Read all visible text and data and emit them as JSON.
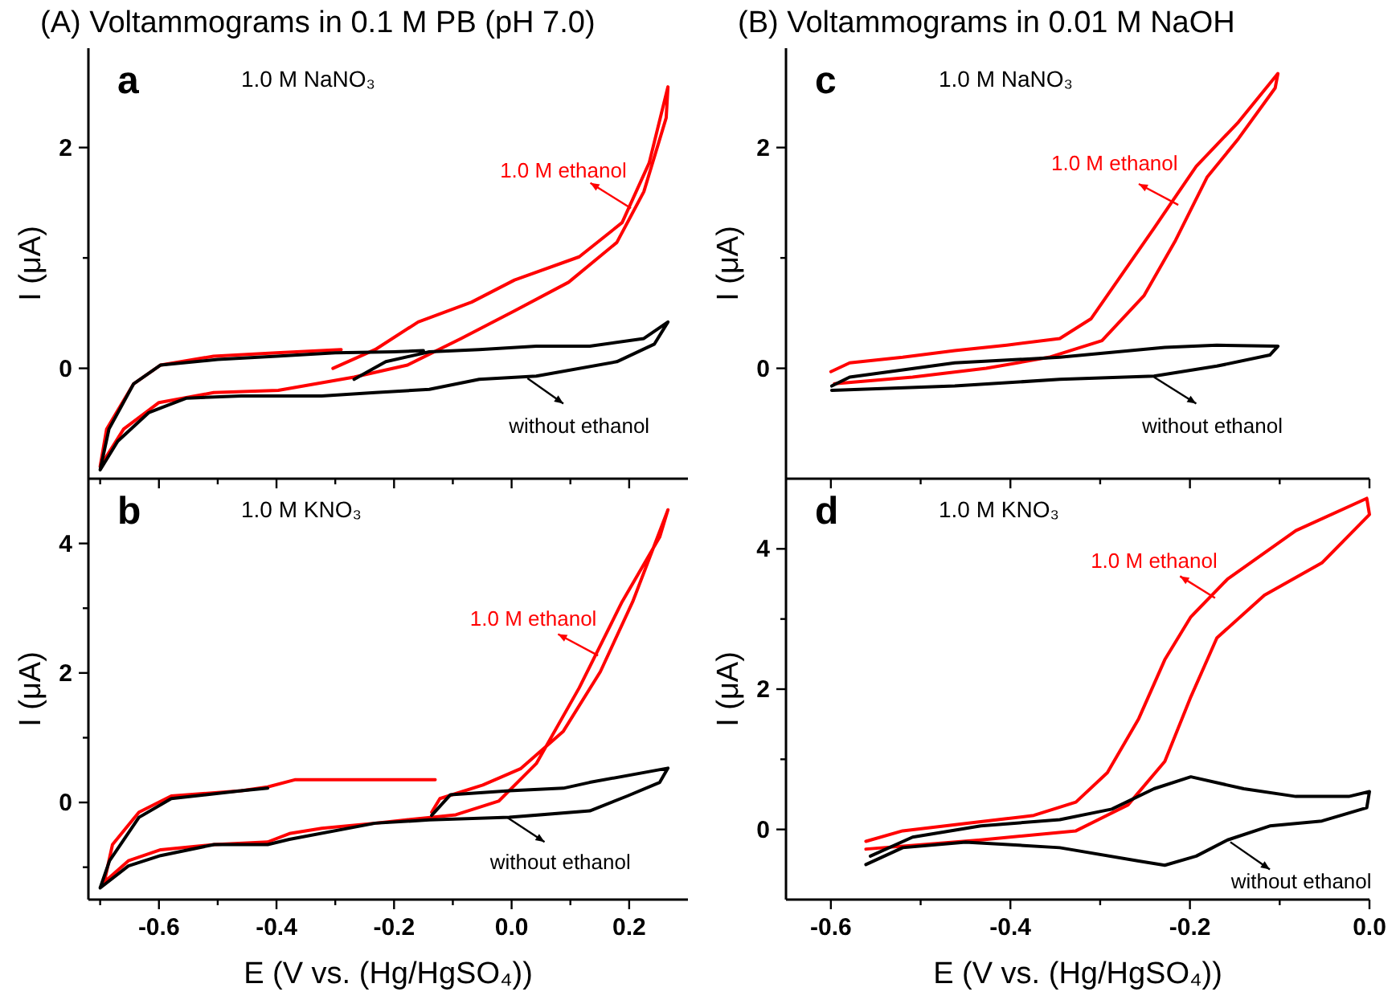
{
  "chart_data": [
    {
      "type": "line",
      "title": "(A) Voltammograms in 0.1 M PB (pH 7.0)",
      "ylabel": "I (μA)",
      "annotations": [
        "a",
        "1.0 M NaNO₃"
      ],
      "tick_labels": "y",
      "xlim": [
        -0.72,
        0.3
      ],
      "xticks": [
        {
          "value": -0.7,
          "label": null
        },
        -0.6,
        {
          "value": -0.5,
          "label": null
        },
        -0.4,
        {
          "value": -0.3,
          "label": null
        },
        -0.2,
        {
          "value": -0.1,
          "label": null
        },
        0,
        {
          "value": 0.1,
          "label": null
        },
        0.2
      ],
      "ylim": [
        -1,
        2.9
      ],
      "yticks": [
        0,
        {
          "value": 1,
          "label": null
        },
        2
      ],
      "series": [
        {
          "name": "1.0 M ethanol",
          "color": "#ff0000",
          "x": [
            -0.304,
            -0.232,
            -0.159,
            -0.068,
            0.005,
            0.115,
            0.188,
            0.234,
            0.266,
            0.263,
            0.225,
            0.179,
            0.097,
            0.005,
            -0.086,
            -0.177,
            -0.268,
            -0.397,
            -0.507,
            -0.6,
            -0.66,
            -0.7,
            -0.689,
            -0.643,
            -0.597,
            -0.507,
            -0.4,
            -0.29
          ],
          "values": [
            0.0,
            0.17,
            0.42,
            0.6,
            0.8,
            1.01,
            1.32,
            1.86,
            2.55,
            2.27,
            1.6,
            1.14,
            0.78,
            0.52,
            0.27,
            0.03,
            -0.08,
            -0.2,
            -0.22,
            -0.31,
            -0.55,
            -0.89,
            -0.55,
            -0.14,
            0.03,
            0.11,
            0.14,
            0.17
          ]
        },
        {
          "name": "without ethanol",
          "color": "#000000",
          "x": [
            -0.268,
            -0.214,
            -0.14,
            -0.055,
            0.042,
            0.133,
            0.225,
            0.266,
            0.243,
            0.179,
            0.042,
            -0.055,
            -0.14,
            -0.232,
            -0.323,
            -0.46,
            -0.553,
            -0.617,
            -0.67,
            -0.7,
            -0.685,
            -0.643,
            -0.597,
            -0.5,
            -0.4,
            -0.3,
            -0.2,
            -0.15
          ],
          "values": [
            -0.1,
            0.06,
            0.15,
            0.17,
            0.2,
            0.2,
            0.27,
            0.42,
            0.22,
            0.06,
            -0.07,
            -0.1,
            -0.19,
            -0.22,
            -0.25,
            -0.25,
            -0.27,
            -0.4,
            -0.66,
            -0.92,
            -0.55,
            -0.14,
            0.03,
            0.08,
            0.11,
            0.14,
            0.15,
            0.16
          ]
        }
      ]
    },
    {
      "type": "line",
      "title": "(B) Voltammograms in 0.01 M NaOH",
      "ylabel": "I (μA)",
      "annotations": [
        "c",
        "1.0 M NaNO₃"
      ],
      "tick_labels": "y",
      "xlim": [
        -0.65,
        0.0
      ],
      "xticks": [
        -0.6,
        {
          "value": -0.5,
          "label": null
        },
        -0.4,
        {
          "value": -0.3,
          "label": null
        },
        -0.2,
        {
          "value": -0.1,
          "label": null
        },
        0
      ],
      "ylim": [
        -1,
        2.9
      ],
      "yticks": [
        0,
        {
          "value": 1,
          "label": null
        },
        2
      ],
      "series": [
        {
          "name": "1.0 M ethanol",
          "color": "#ff0000",
          "x": [
            -0.6,
            -0.579,
            -0.52,
            -0.462,
            -0.404,
            -0.345,
            -0.31,
            -0.275,
            -0.24,
            -0.193,
            -0.146,
            -0.102,
            -0.105,
            -0.146,
            -0.181,
            -0.216,
            -0.251,
            -0.298,
            -0.357,
            -0.427,
            -0.509,
            -0.596
          ],
          "values": [
            -0.03,
            0.05,
            0.1,
            0.16,
            0.21,
            0.27,
            0.45,
            0.86,
            1.27,
            1.83,
            2.23,
            2.67,
            2.54,
            2.08,
            1.73,
            1.16,
            0.66,
            0.25,
            0.1,
            0.0,
            -0.08,
            -0.14
          ]
        },
        {
          "name": "without ethanol",
          "color": "#000000",
          "x": [
            -0.599,
            -0.462,
            -0.345,
            -0.24,
            -0.17,
            -0.111,
            -0.102,
            -0.17,
            -0.228,
            -0.345,
            -0.462,
            -0.579,
            -0.599
          ],
          "values": [
            -0.2,
            -0.16,
            -0.1,
            -0.07,
            0.02,
            0.12,
            0.2,
            0.21,
            0.19,
            0.1,
            0.05,
            -0.08,
            -0.16
          ]
        }
      ]
    },
    {
      "type": "line",
      "xlabel": "E (V vs. (Hg/HgSO₄))",
      "ylabel": "I (μA)",
      "annotations": [
        "b",
        "1.0 M KNO₃"
      ],
      "xlim": [
        -0.72,
        0.3
      ],
      "xticks": [
        {
          "value": -0.7,
          "label": null
        },
        -0.6,
        {
          "value": -0.5,
          "label": null
        },
        -0.4,
        {
          "value": -0.3,
          "label": null
        },
        -0.2,
        {
          "value": -0.1,
          "label": null
        },
        {
          "value": 0,
          "label": "0.0"
        },
        {
          "value": 0.1,
          "label": null
        },
        0.2
      ],
      "ylim": [
        -1.5,
        5
      ],
      "yticks": [
        {
          "value": -1,
          "label": null
        },
        0,
        {
          "value": 1,
          "label": null
        },
        2,
        {
          "value": 3,
          "label": null
        },
        4
      ],
      "series": [
        {
          "name": "1.0 M ethanol",
          "color": "#ff0000",
          "x": [
            -0.136,
            -0.122,
            -0.049,
            0.015,
            0.088,
            0.151,
            0.206,
            0.266,
            0.252,
            0.188,
            0.115,
            0.042,
            -0.022,
            -0.095,
            -0.232,
            -0.323,
            -0.378,
            -0.415,
            -0.506,
            -0.597,
            -0.652,
            -0.693,
            -0.679,
            -0.634,
            -0.579,
            -0.46,
            -0.415,
            -0.369,
            -0.278,
            -0.13
          ],
          "values": [
            -0.15,
            0.06,
            0.27,
            0.52,
            1.1,
            2.02,
            3.1,
            4.52,
            4.1,
            3.1,
            1.77,
            0.6,
            0.02,
            -0.19,
            -0.32,
            -0.4,
            -0.48,
            -0.61,
            -0.65,
            -0.73,
            -0.9,
            -1.23,
            -0.65,
            -0.15,
            0.1,
            0.18,
            0.24,
            0.35,
            0.35,
            0.35
          ]
        },
        {
          "name": "without ethanol",
          "color": "#000000",
          "x": [
            -0.136,
            -0.104,
            -0.004,
            0.088,
            0.133,
            0.266,
            0.252,
            0.197,
            0.133,
            -0.004,
            -0.14,
            -0.232,
            -0.378,
            -0.415,
            -0.506,
            -0.597,
            -0.652,
            -0.7,
            -0.684,
            -0.634,
            -0.579,
            -0.46,
            -0.415
          ],
          "values": [
            -0.2,
            0.12,
            0.18,
            0.22,
            0.31,
            0.53,
            0.31,
            0.1,
            -0.13,
            -0.23,
            -0.27,
            -0.32,
            -0.57,
            -0.65,
            -0.65,
            -0.82,
            -0.98,
            -1.32,
            -0.9,
            -0.23,
            0.06,
            0.18,
            0.22
          ]
        }
      ]
    },
    {
      "type": "line",
      "xlabel": "E (V vs. (Hg/HgSO₄))",
      "ylabel": "I (μA)",
      "annotations": [
        "d",
        "1.0 M KNO₃"
      ],
      "xlim": [
        -0.65,
        0.0
      ],
      "xticks": [
        -0.6,
        {
          "value": -0.5,
          "label": null
        },
        -0.4,
        {
          "value": -0.3,
          "label": null
        },
        -0.2,
        {
          "value": -0.1,
          "label": null
        },
        {
          "value": 0,
          "label": "0.0"
        }
      ],
      "ylim": [
        -1,
        5
      ],
      "yticks": [
        0,
        {
          "value": 1,
          "label": null
        },
        2,
        {
          "value": 3,
          "label": null
        },
        4
      ],
      "series": [
        {
          "name": "1.0 M ethanol",
          "color": "#ff0000",
          "x": [
            -0.561,
            -0.52,
            -0.433,
            -0.374,
            -0.327,
            -0.292,
            -0.257,
            -0.228,
            -0.199,
            -0.158,
            -0.082,
            -0.003,
            0.0,
            -0.053,
            -0.117,
            -0.17,
            -0.199,
            -0.228,
            -0.269,
            -0.327,
            -0.433,
            -0.561
          ],
          "values": [
            -0.17,
            -0.02,
            0.11,
            0.2,
            0.39,
            0.81,
            1.58,
            2.42,
            3.03,
            3.57,
            4.26,
            4.72,
            4.49,
            3.8,
            3.34,
            2.73,
            1.89,
            0.97,
            0.35,
            -0.02,
            -0.15,
            -0.28
          ]
        },
        {
          "name": "without ethanol",
          "color": "#000000",
          "x": [
            -0.556,
            -0.509,
            -0.433,
            -0.345,
            -0.287,
            -0.24,
            -0.199,
            -0.14,
            -0.082,
            -0.023,
            0.0,
            -0.003,
            -0.053,
            -0.111,
            -0.158,
            -0.193,
            -0.228,
            -0.257,
            -0.345,
            -0.45,
            -0.52,
            -0.561
          ],
          "values": [
            -0.38,
            -0.11,
            0.05,
            0.14,
            0.29,
            0.58,
            0.75,
            0.58,
            0.47,
            0.47,
            0.54,
            0.31,
            0.12,
            0.05,
            -0.15,
            -0.38,
            -0.51,
            -0.45,
            -0.26,
            -0.18,
            -0.26,
            -0.5
          ]
        }
      ]
    }
  ]
}
